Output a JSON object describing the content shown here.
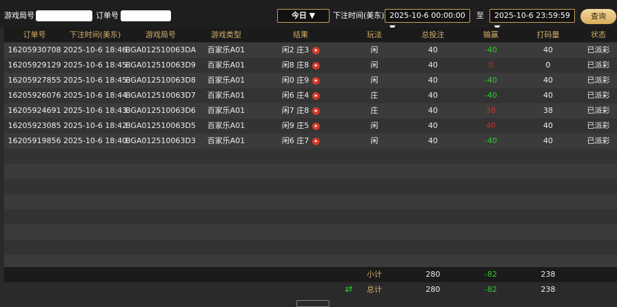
{
  "filters": {
    "game_round_label": "游戏局号",
    "order_label": "订单号",
    "period": "今日",
    "time_label": "下注时间(美东)",
    "start": "2025-10-6 00:00:00",
    "to": "至",
    "end": "2025-10-6 23:59:59",
    "search": "查询"
  },
  "table": {
    "columns": [
      "订单号",
      "下注时间(美东)",
      "游戏局号",
      "游戏类型",
      "结果",
      "玩法",
      "总投注",
      "输赢",
      "打码量",
      "状态"
    ],
    "rows": [
      [
        "16205930708",
        "2025-10-6 18:46",
        "BGA012510063DA",
        "百家乐A01",
        "闲2 庄3",
        "闲",
        40,
        -40,
        40,
        "已派彩"
      ],
      [
        "16205929129",
        "2025-10-6 18:45",
        "BGA012510063D9",
        "百家乐A01",
        "闲8 庄8",
        "闲",
        40,
        0,
        0,
        "已派彩"
      ],
      [
        "16205927855",
        "2025-10-6 18:45",
        "BGA012510063D8",
        "百家乐A01",
        "闲0 庄9",
        "闲",
        40,
        -40,
        40,
        "已派彩"
      ],
      [
        "16205926076",
        "2025-10-6 18:44",
        "BGA012510063D7",
        "百家乐A01",
        "闲6 庄4",
        "庄",
        40,
        -40,
        40,
        "已派彩"
      ],
      [
        "16205924691",
        "2025-10-6 18:43",
        "BGA012510063D6",
        "百家乐A01",
        "闲7 庄8",
        "庄",
        40,
        38,
        38,
        "已派彩"
      ],
      [
        "16205923085",
        "2025-10-6 18:42",
        "BGA012510063D5",
        "百家乐A01",
        "闲9 庄5",
        "闲",
        40,
        40,
        40,
        "已派彩"
      ],
      [
        "16205919856",
        "2025-10-6 18:40",
        "BGA012510063D3",
        "百家乐A01",
        "闲6 庄7",
        "闲",
        40,
        -40,
        40,
        "已派彩"
      ]
    ],
    "subtotal": {
      "label": "小计",
      "total_bet": 280,
      "win_loss": -82,
      "turnover": 238
    },
    "total": {
      "label": "总计",
      "total_bet": 280,
      "win_loss": -82,
      "turnover": 238
    }
  }
}
